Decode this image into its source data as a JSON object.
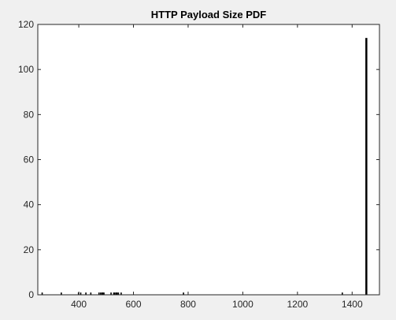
{
  "chart_data": {
    "type": "bar",
    "title": "HTTP Payload Size PDF",
    "xlabel": "",
    "ylabel": "",
    "xlim": [
      250,
      1500
    ],
    "ylim": [
      0,
      120
    ],
    "x_ticks": [
      400,
      600,
      800,
      1000,
      1200,
      1400
    ],
    "y_ticks": [
      0,
      20,
      40,
      60,
      80,
      100,
      120
    ],
    "grid": false,
    "bar_color": "#000000",
    "x": [
      266,
      336,
      399,
      407,
      426,
      444,
      474,
      480,
      485,
      488,
      492,
      518,
      528,
      532,
      537,
      540,
      545,
      555,
      783,
      1364,
      1452
    ],
    "values": [
      1,
      1,
      1,
      1,
      1,
      1,
      1,
      1,
      1,
      1,
      1,
      1,
      1,
      1,
      1,
      1,
      1,
      1,
      1,
      1,
      114
    ]
  }
}
